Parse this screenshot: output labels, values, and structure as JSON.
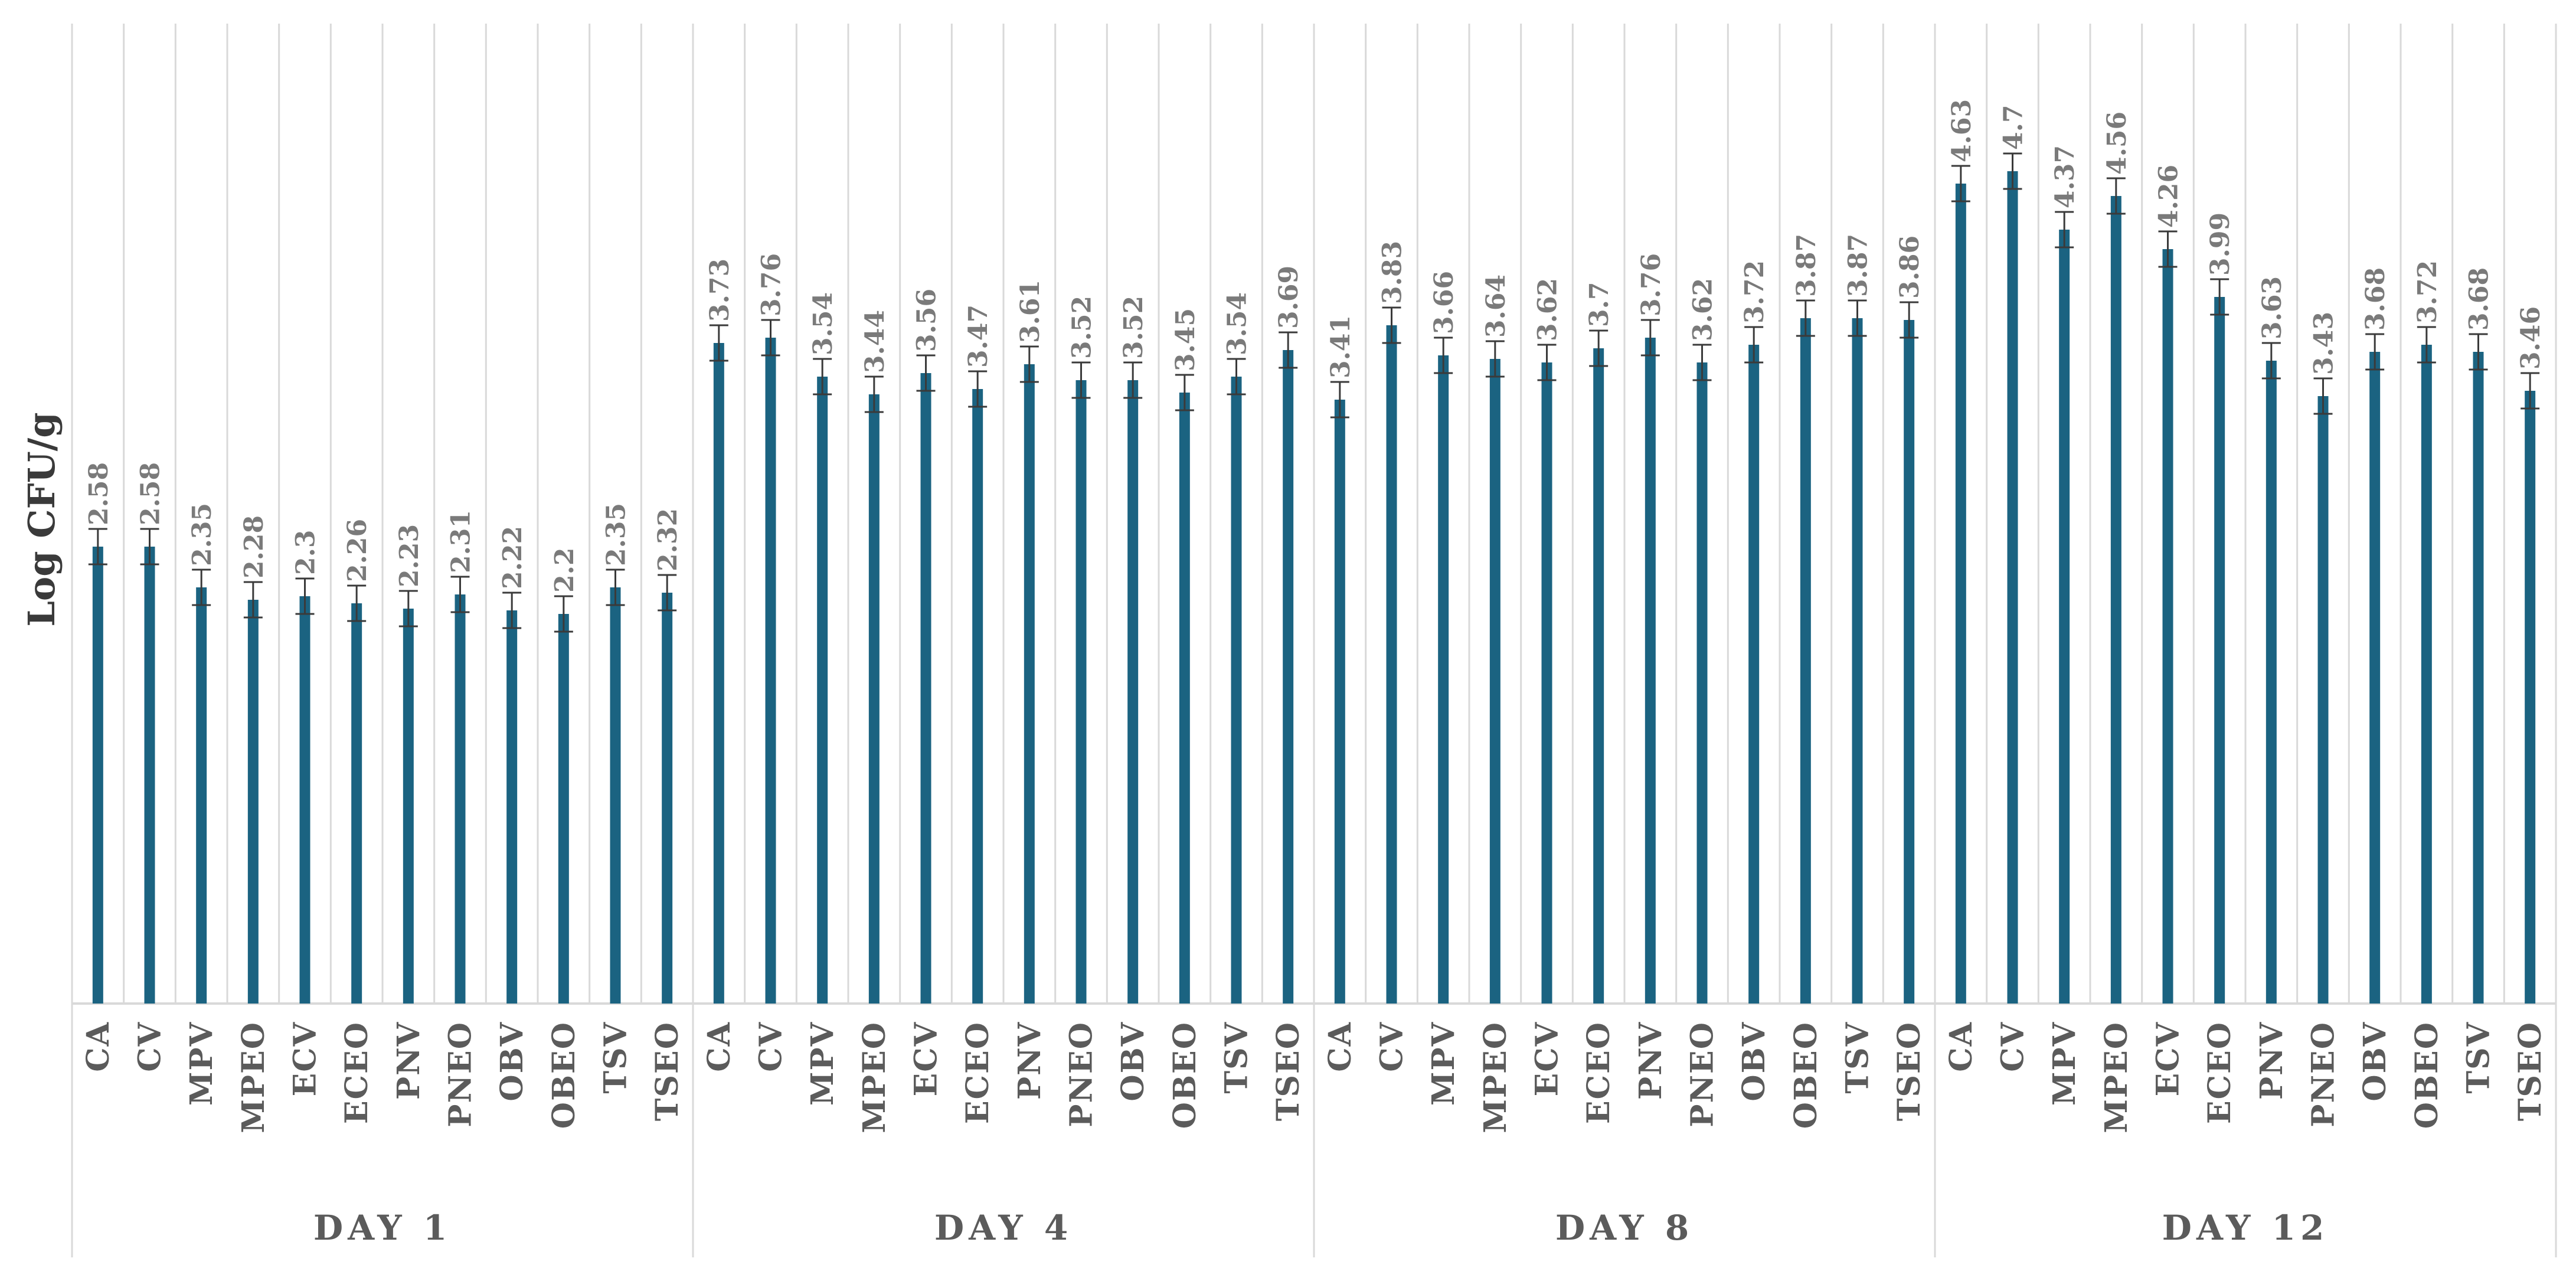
{
  "chart_data": {
    "type": "bar",
    "ylabel": "Log CFU/g",
    "xlabel": "",
    "ylim": [
      0,
      5.3
    ],
    "grid": "vertical",
    "groups": [
      {
        "label": "DAY 1",
        "categories": [
          "CA",
          "CV",
          "MPV",
          "MPEO",
          "ECV",
          "ECEO",
          "PNV",
          "PNEO",
          "OBV",
          "OBEO",
          "TSV",
          "TSEO"
        ],
        "values": [
          2.58,
          2.58,
          2.35,
          2.28,
          2.3,
          2.26,
          2.23,
          2.31,
          2.22,
          2.2,
          2.35,
          2.32
        ],
        "errors": [
          0.1,
          0.1,
          0.1,
          0.1,
          0.1,
          0.1,
          0.1,
          0.1,
          0.1,
          0.1,
          0.1,
          0.1
        ]
      },
      {
        "label": "DAY 4",
        "categories": [
          "CA",
          "CV",
          "MPV",
          "MPEO",
          "ECV",
          "ECEO",
          "PNV",
          "PNEO",
          "OBV",
          "OBEO",
          "TSV",
          "TSEO"
        ],
        "values": [
          3.73,
          3.76,
          3.54,
          3.44,
          3.56,
          3.47,
          3.61,
          3.52,
          3.52,
          3.45,
          3.54,
          3.69
        ],
        "errors": [
          0.1,
          0.1,
          0.1,
          0.1,
          0.1,
          0.1,
          0.1,
          0.1,
          0.1,
          0.1,
          0.1,
          0.1
        ]
      },
      {
        "label": "DAY 8",
        "categories": [
          "CA",
          "CV",
          "MPV",
          "MPEO",
          "ECV",
          "ECEO",
          "PNV",
          "PNEO",
          "OBV",
          "OBEO",
          "TSV",
          "TSEO"
        ],
        "values": [
          3.41,
          3.83,
          3.66,
          3.64,
          3.62,
          3.7,
          3.76,
          3.62,
          3.72,
          3.87,
          3.87,
          3.86
        ],
        "errors": [
          0.1,
          0.1,
          0.1,
          0.1,
          0.1,
          0.1,
          0.1,
          0.1,
          0.1,
          0.1,
          0.1,
          0.1
        ]
      },
      {
        "label": "DAY 12",
        "categories": [
          "CA",
          "CV",
          "MPV",
          "MPEO",
          "ECV",
          "ECEO",
          "PNV",
          "PNEO",
          "OBV",
          "OBEO",
          "TSV",
          "TSEO"
        ],
        "values": [
          4.63,
          4.7,
          4.37,
          4.56,
          4.26,
          3.99,
          3.63,
          3.43,
          3.68,
          3.72,
          3.68,
          3.46
        ],
        "errors": [
          0.1,
          0.1,
          0.1,
          0.1,
          0.1,
          0.1,
          0.1,
          0.1,
          0.1,
          0.1,
          0.1,
          0.1
        ]
      }
    ],
    "colors": {
      "bar": "#1b6381",
      "error_bar": "#3a3a3a",
      "value_label": "#7a7a7a",
      "gridline": "#d9d9d9",
      "axis_text": "#5b5b5b"
    }
  }
}
